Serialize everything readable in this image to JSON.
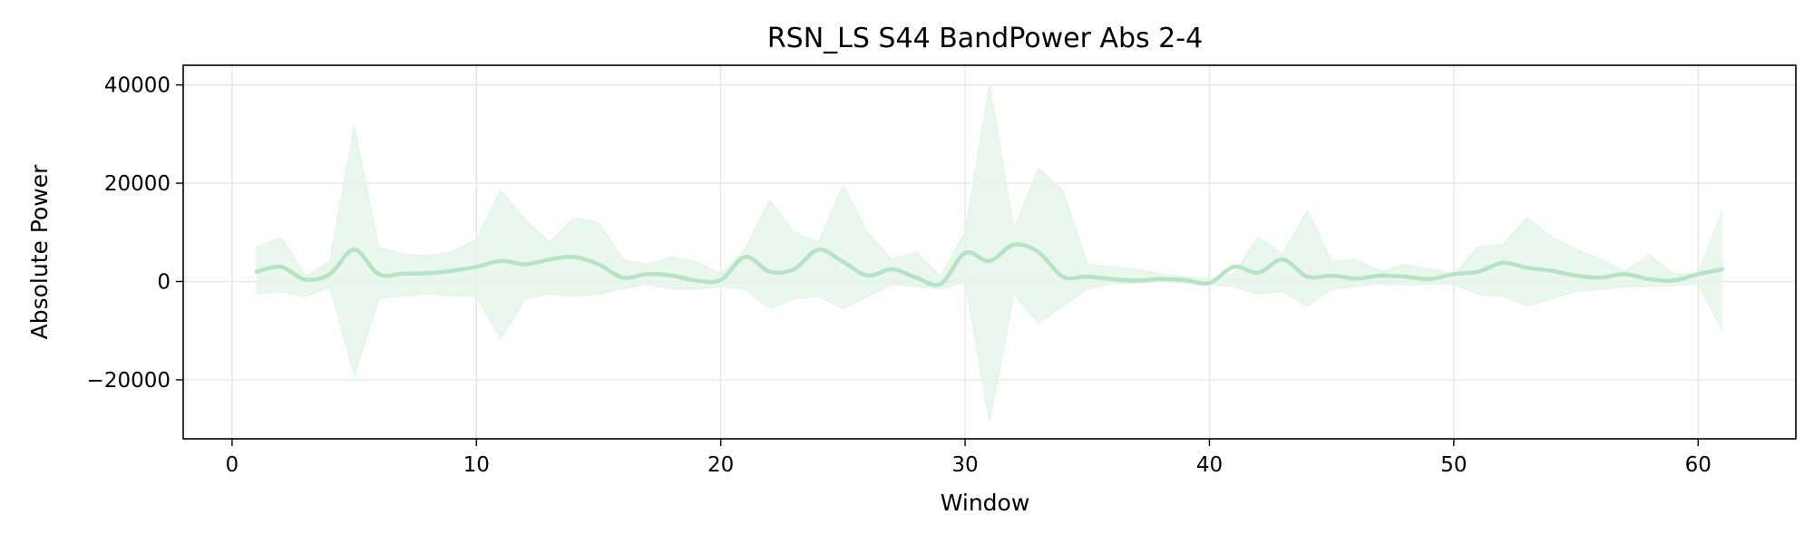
{
  "chart_data": {
    "type": "line",
    "title": "RSN_LS S44 BandPower Abs 2-4",
    "xlabel": "Window",
    "ylabel": "Absolute Power",
    "xlim": [
      -2,
      64
    ],
    "ylim": [
      -32000,
      44000
    ],
    "xticks": [
      0,
      10,
      20,
      30,
      40,
      50,
      60
    ],
    "yticks": [
      -20000,
      0,
      20000,
      40000
    ],
    "xtick_labels": [
      "0",
      "10",
      "20",
      "30",
      "40",
      "50",
      "60"
    ],
    "ytick_labels": [
      "−20000",
      "0",
      "20000",
      "40000"
    ],
    "grid": true,
    "colors": {
      "line": "#b5e3c4",
      "band": "#e3f4e8"
    },
    "series": [
      {
        "x": [
          1,
          2,
          3,
          4,
          5,
          6,
          7,
          8,
          9,
          10,
          11,
          12,
          13,
          14,
          15,
          16,
          17,
          18,
          19,
          20,
          21,
          22,
          23,
          24,
          25,
          26,
          27,
          28,
          29,
          30,
          31,
          32,
          33,
          34,
          35,
          36,
          37,
          38,
          39,
          40,
          41,
          42,
          43,
          44,
          45,
          46,
          47,
          48,
          49,
          50,
          51,
          52,
          53,
          54,
          55,
          56,
          57,
          58,
          59,
          60,
          61
        ],
        "mean": [
          2000,
          3000,
          400,
          1500,
          6500,
          1500,
          1600,
          1700,
          2200,
          3000,
          4200,
          3500,
          4500,
          5000,
          3500,
          800,
          1500,
          1200,
          200,
          300,
          5000,
          2000,
          2500,
          6500,
          4000,
          1200,
          2500,
          800,
          -500,
          5800,
          4200,
          7500,
          6000,
          1000,
          1000,
          500,
          200,
          500,
          300,
          -300,
          3000,
          1800,
          4500,
          1000,
          1200,
          600,
          1200,
          1000,
          500,
          1500,
          2000,
          3800,
          2800,
          2200,
          1200,
          800,
          1500,
          500,
          200,
          1500,
          2500
        ],
        "upper": [
          7000,
          9000,
          1000,
          4000,
          31500,
          7000,
          5500,
          5200,
          6000,
          8500,
          18500,
          12500,
          8000,
          13000,
          12000,
          4500,
          3500,
          5000,
          4000,
          1500,
          6500,
          16500,
          10000,
          8000,
          19500,
          10000,
          4500,
          6000,
          1000,
          10000,
          40000,
          10500,
          23000,
          18500,
          3500,
          3000,
          2500,
          1500,
          1000,
          500,
          1500,
          9000,
          5500,
          14500,
          4000,
          4500,
          2000,
          3500,
          2500,
          1500,
          7000,
          7500,
          13000,
          9000,
          6500,
          4500,
          2000,
          5500,
          1500,
          1500,
          14500
        ],
        "lower": [
          -2500,
          -2000,
          -3000,
          -1000,
          -19000,
          -3500,
          -2800,
          -2500,
          -2800,
          -3000,
          -11500,
          -3500,
          -2500,
          -3000,
          -2500,
          -1500,
          -500,
          -1500,
          -1500,
          -1000,
          -1500,
          -5500,
          -3500,
          -3000,
          -5500,
          -3000,
          -500,
          -1000,
          -1500,
          0,
          -28500,
          -2500,
          -8500,
          -5000,
          -1500,
          -500,
          -300,
          0,
          -300,
          -500,
          -1000,
          -2500,
          -2000,
          -5000,
          -1500,
          -1000,
          -500,
          -700,
          -500,
          -500,
          -2500,
          -3000,
          -5000,
          -3500,
          -2000,
          -1500,
          -1000,
          -1000,
          -800,
          -500,
          -10000
        ]
      }
    ]
  }
}
